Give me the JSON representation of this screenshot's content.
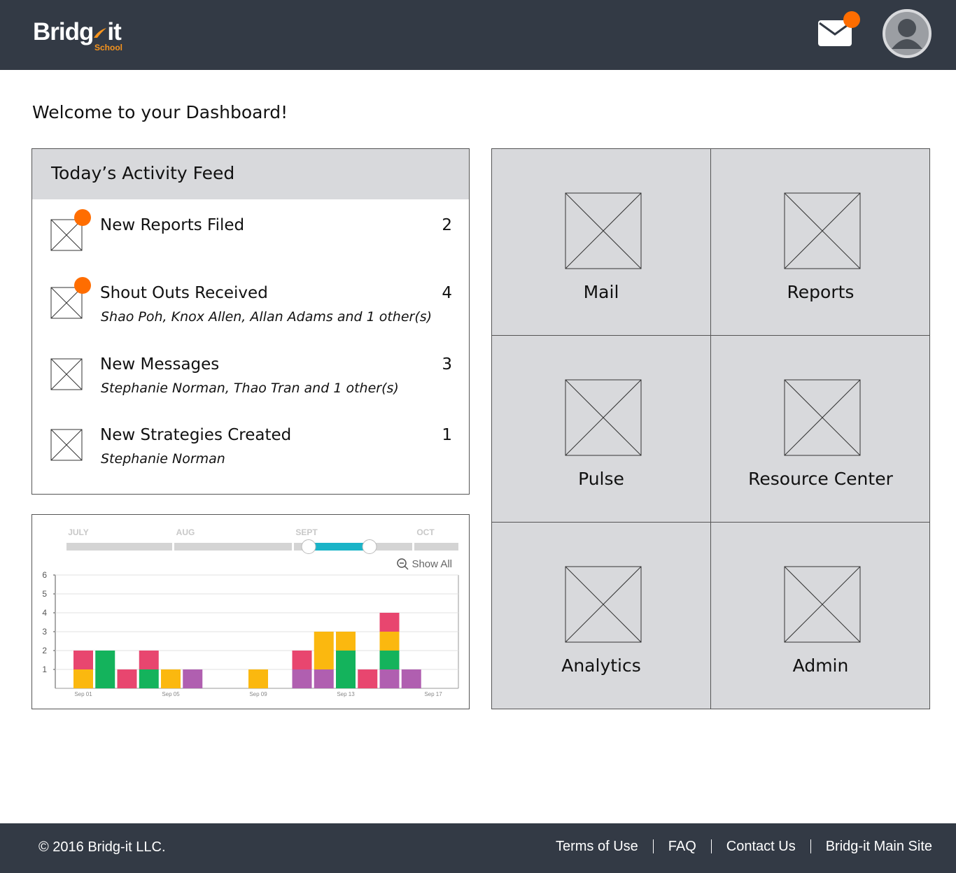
{
  "header": {
    "logo": {
      "left": "Bridg",
      "right": "it",
      "tagline": "School"
    }
  },
  "welcome": "Welcome to your Dashboard!",
  "feed": {
    "title": "Today’s Activity Feed",
    "items": [
      {
        "title": "New Reports Filed",
        "count": 2,
        "alert": true
      },
      {
        "title": "Shout Outs Received",
        "count": 4,
        "subtitle": "Shao Poh, Knox Allen, Allan Adams and 1 other(s)",
        "alert": true
      },
      {
        "title": "New Messages",
        "count": 3,
        "subtitle": "Stephanie Norman, Thao Tran and 1 other(s)"
      },
      {
        "title": "New Strategies Created",
        "count": 1,
        "subtitle": "Stephanie Norman"
      }
    ]
  },
  "chart_data": {
    "type": "stacked_bar",
    "timeline": [
      "JULY",
      "AUG",
      "SEPT",
      "OCT"
    ],
    "show_all": "Show All",
    "categories": [
      "Sep 01",
      null,
      null,
      null,
      "Sep 05",
      null,
      null,
      null,
      "Sep 09",
      null,
      null,
      null,
      "Sep 13",
      null,
      null,
      null,
      "Sep 17"
    ],
    "series": [
      {
        "color": "#b05fb0",
        "values": [
          0,
          0,
          0,
          0,
          0,
          1,
          0,
          0,
          0,
          0,
          1,
          1,
          0,
          0,
          1,
          1,
          0
        ]
      },
      {
        "color": "#14b35c",
        "values": [
          0,
          2,
          0,
          1,
          0,
          0,
          0,
          0,
          0,
          0,
          0,
          0,
          2,
          0,
          1,
          0,
          0
        ]
      },
      {
        "color": "#fbb80f",
        "values": [
          1,
          0,
          0,
          0,
          1,
          0,
          0,
          0,
          1,
          0,
          0,
          2,
          1,
          0,
          1,
          0,
          0
        ]
      },
      {
        "color": "#e8466f",
        "values": [
          1,
          0,
          1,
          1,
          0,
          0,
          0,
          0,
          0,
          0,
          1,
          0,
          0,
          1,
          1,
          0,
          0
        ]
      }
    ],
    "ylim": [
      0,
      6
    ],
    "yticks": [
      1,
      2,
      3,
      4,
      5,
      6
    ],
    "grid": true
  },
  "tiles": [
    "Mail",
    "Reports",
    "Pulse",
    "Resource Center",
    "Analytics",
    "Admin"
  ],
  "footer": {
    "copyright": "© 2016 Bridg-it LLC.",
    "links": [
      "Terms of Use",
      "FAQ",
      "Contact Us",
      "Bridg-it Main Site"
    ]
  }
}
